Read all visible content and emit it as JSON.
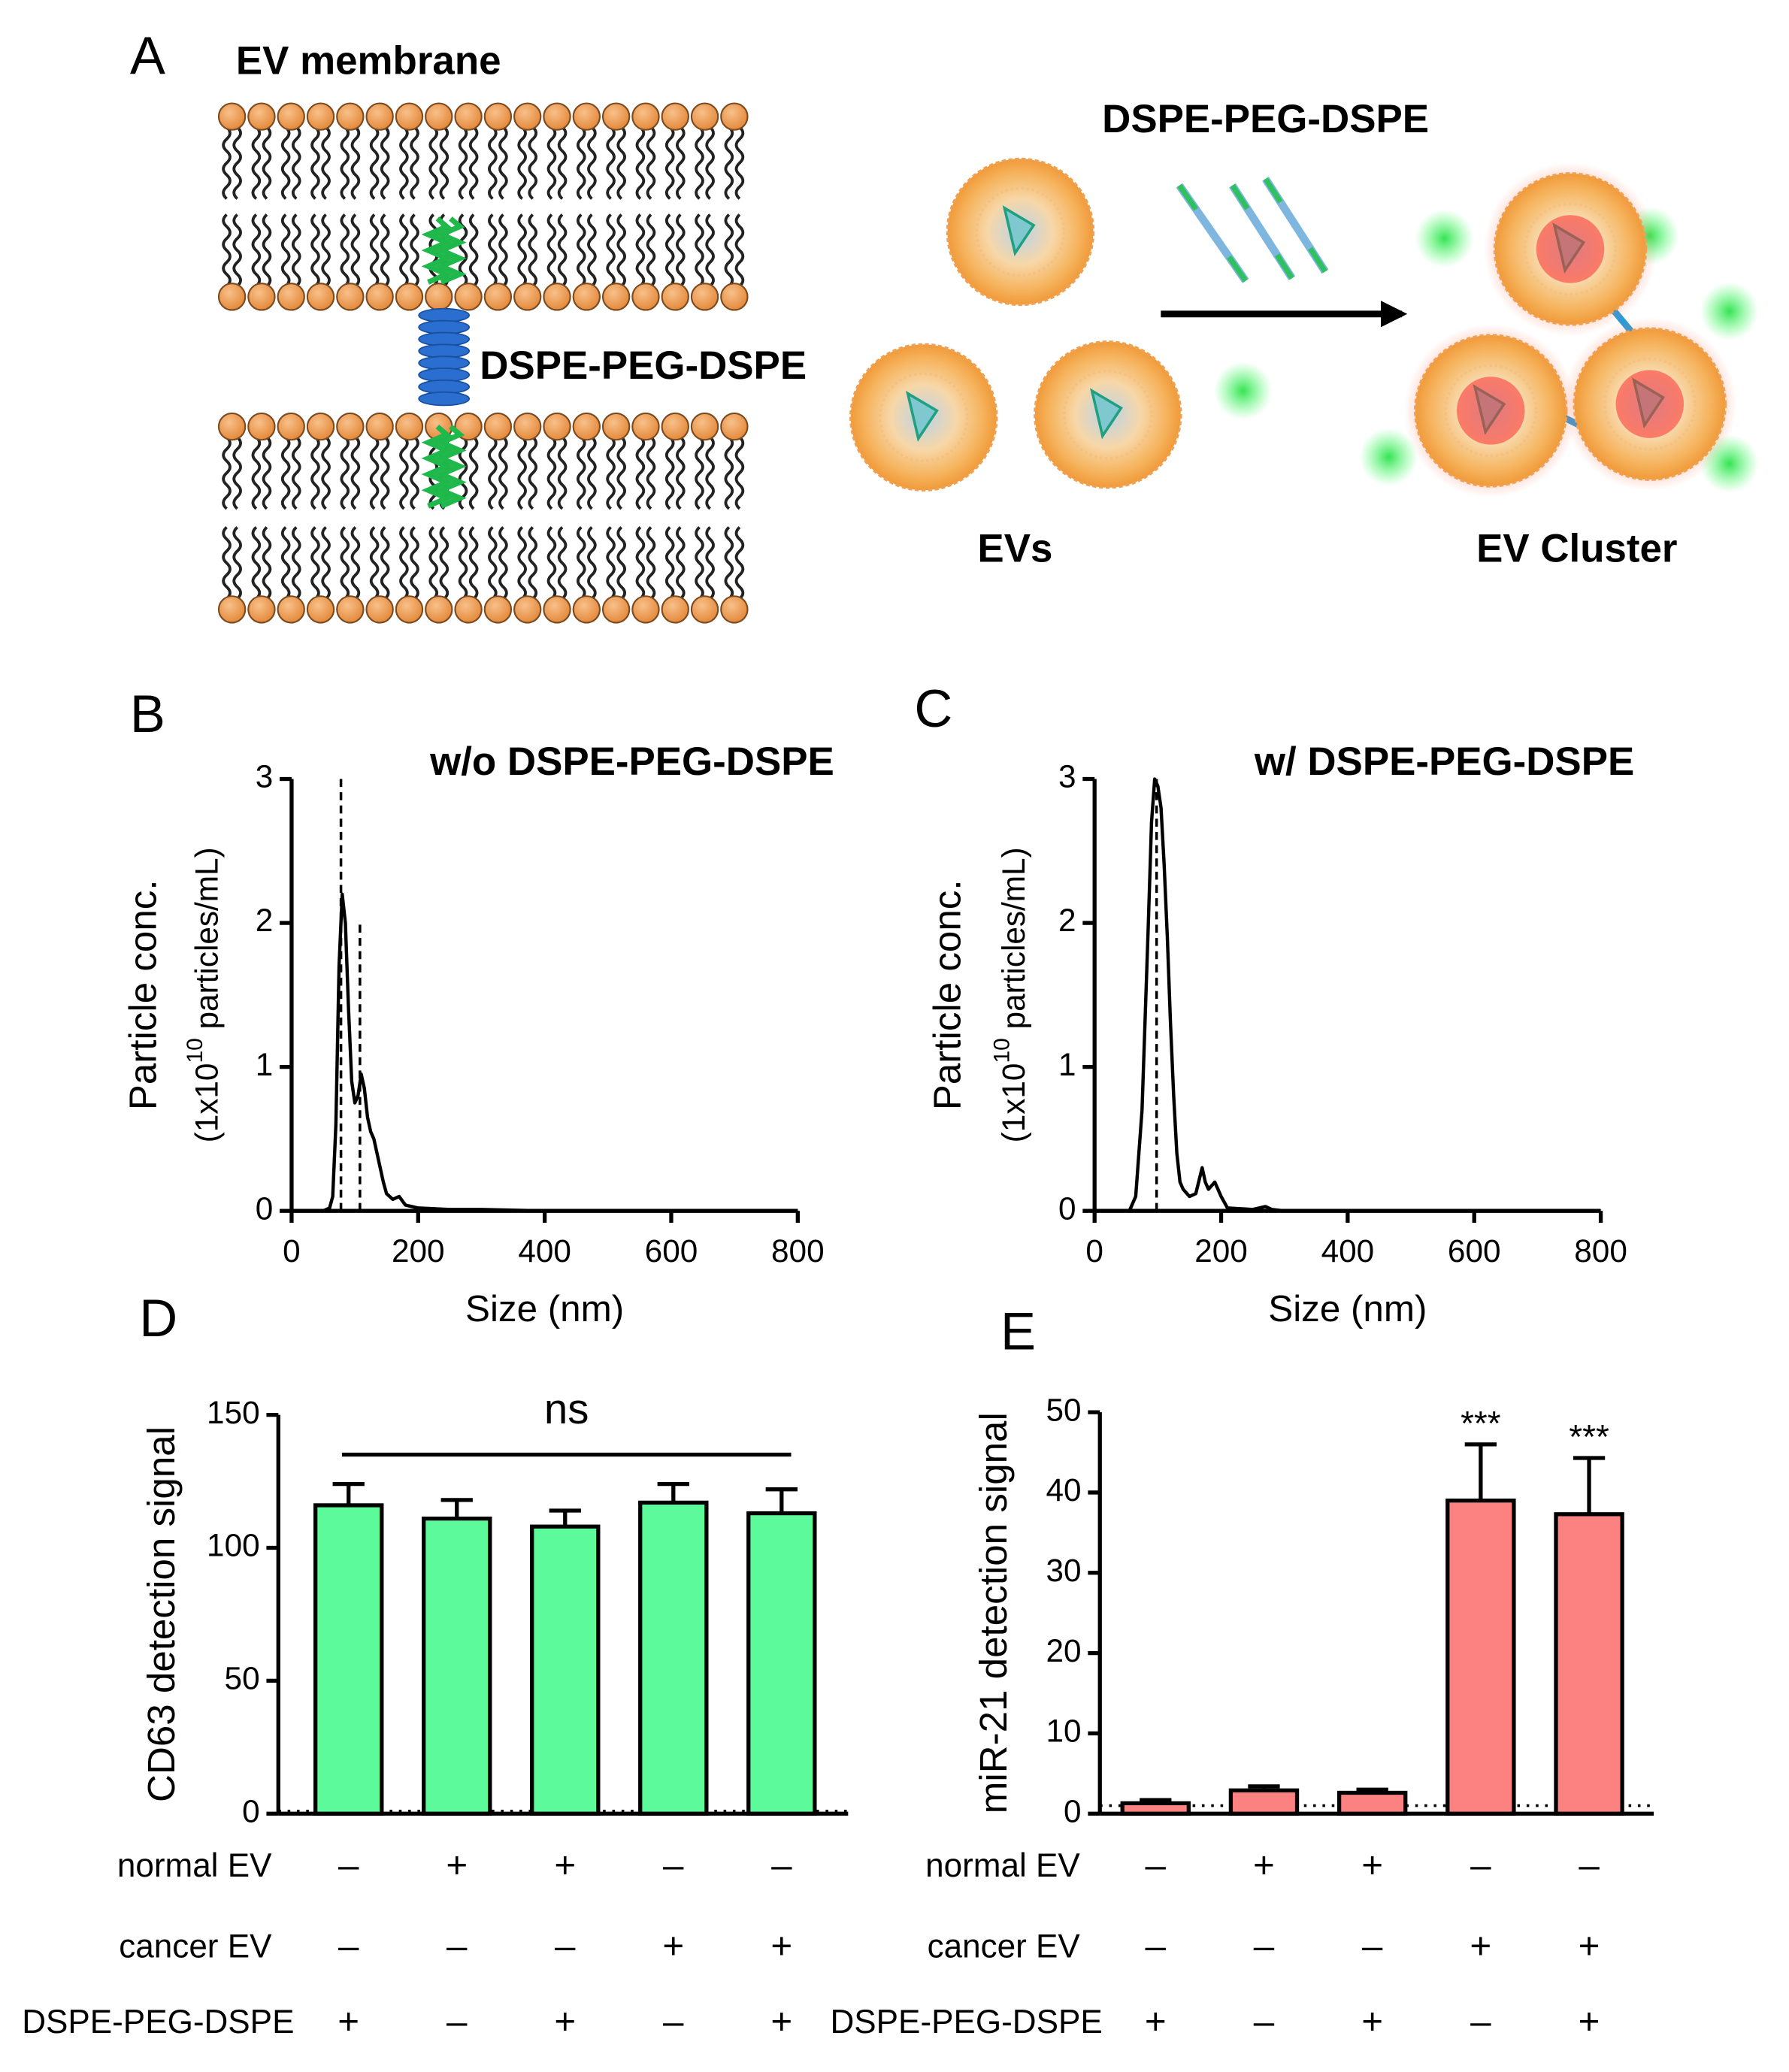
{
  "panel_labels": [
    "A",
    "B",
    "C",
    "D",
    "E"
  ],
  "panel_a": {
    "membrane_label": "EV membrane",
    "linker_label": "DSPE-PEG-DSPE",
    "reagent_label": "DSPE-PEG-DSPE",
    "evs_label": "EVs",
    "cluster_label": "EV Cluster"
  },
  "chart_data": [
    {
      "type": "line",
      "title": "w/o DSPE-PEG-DSPE",
      "x_label": "Size (nm)",
      "y_label": "Particle conc.",
      "y_units": {
        "pre": "(1x10",
        "sup": "10",
        "post": " particles/mL)"
      },
      "xlim": [
        0,
        800
      ],
      "xticks": [
        0,
        200,
        400,
        600,
        800
      ],
      "ylim": [
        0,
        3
      ],
      "yticks": [
        0,
        1,
        2,
        3
      ],
      "series": [
        {
          "color": "#000000",
          "x": [
            50,
            60,
            65,
            70,
            75,
            80,
            85,
            90,
            95,
            100,
            105,
            110,
            115,
            120,
            125,
            130,
            135,
            140,
            145,
            150,
            160,
            170,
            180,
            190,
            200,
            250,
            300,
            400,
            500,
            600,
            700,
            800
          ],
          "values": [
            0,
            0.02,
            0.1,
            0.6,
            1.7,
            2.2,
            2.0,
            1.4,
            0.9,
            0.75,
            0.8,
            0.95,
            0.85,
            0.65,
            0.55,
            0.5,
            0.4,
            0.3,
            0.2,
            0.12,
            0.08,
            0.1,
            0.04,
            0.03,
            0.02,
            0.01,
            0.01,
            0,
            0,
            0,
            0,
            0
          ]
        }
      ],
      "reference_lines": [
        {
          "x": 78,
          "y": 3
        },
        {
          "x": 108,
          "y": 2
        }
      ]
    },
    {
      "type": "line",
      "title": "w/ DSPE-PEG-DSPE",
      "x_label": "Size (nm)",
      "y_label": "Particle conc.",
      "y_units": {
        "pre": "(1x10",
        "sup": "10",
        "post": " particles/mL)"
      },
      "xlim": [
        0,
        800
      ],
      "xticks": [
        0,
        200,
        400,
        600,
        800
      ],
      "ylim": [
        0,
        3
      ],
      "yticks": [
        0,
        1,
        2,
        3
      ],
      "series": [
        {
          "color": "#000000",
          "x": [
            55,
            65,
            75,
            85,
            90,
            95,
            100,
            105,
            110,
            115,
            120,
            125,
            130,
            135,
            140,
            150,
            160,
            170,
            175,
            180,
            190,
            200,
            210,
            250,
            270,
            280,
            300,
            400,
            800
          ],
          "values": [
            0,
            0.1,
            0.7,
            2.0,
            2.7,
            3.0,
            2.95,
            2.8,
            2.4,
            1.9,
            1.3,
            0.8,
            0.4,
            0.2,
            0.15,
            0.1,
            0.12,
            0.3,
            0.2,
            0.15,
            0.2,
            0.1,
            0.02,
            0.01,
            0.03,
            0.01,
            0,
            0,
            0
          ]
        }
      ],
      "reference_lines": [
        {
          "x": 98,
          "y": 3
        }
      ]
    },
    {
      "type": "bar",
      "y_label": "CD63 detection signal",
      "ylim": [
        0,
        150
      ],
      "yticks": [
        0,
        50,
        100,
        150
      ],
      "color": "#5cfa9a",
      "values": [
        116,
        111,
        108,
        117,
        113
      ],
      "errors": [
        8,
        7,
        6,
        7,
        9
      ],
      "baseline": 1,
      "annotation": "ns",
      "conditions": [
        {
          "label": "normal EV",
          "signs": [
            "–",
            "+",
            "+",
            "–",
            "–"
          ]
        },
        {
          "label": "cancer EV",
          "signs": [
            "–",
            "–",
            "–",
            "+",
            "+"
          ]
        },
        {
          "label": "DSPE-PEG-DSPE",
          "signs": [
            "+",
            "–",
            "+",
            "–",
            "+"
          ]
        }
      ]
    },
    {
      "type": "bar",
      "y_label": "miR-21 detection signal",
      "ylim": [
        0,
        50
      ],
      "yticks": [
        0,
        10,
        20,
        30,
        40,
        50
      ],
      "color": "#fc8282",
      "values": [
        1.3,
        2.9,
        2.6,
        39,
        37.3
      ],
      "errors": [
        0.4,
        0.5,
        0.4,
        7,
        7
      ],
      "baseline": 1,
      "value_annotations": [
        null,
        null,
        null,
        "***",
        "***"
      ],
      "conditions": [
        {
          "label": "normal EV",
          "signs": [
            "–",
            "+",
            "+",
            "–",
            "–"
          ]
        },
        {
          "label": "cancer EV",
          "signs": [
            "–",
            "–",
            "–",
            "+",
            "+"
          ]
        },
        {
          "label": "DSPE-PEG-DSPE",
          "signs": [
            "+",
            "–",
            "+",
            "–",
            "+"
          ]
        }
      ]
    }
  ]
}
